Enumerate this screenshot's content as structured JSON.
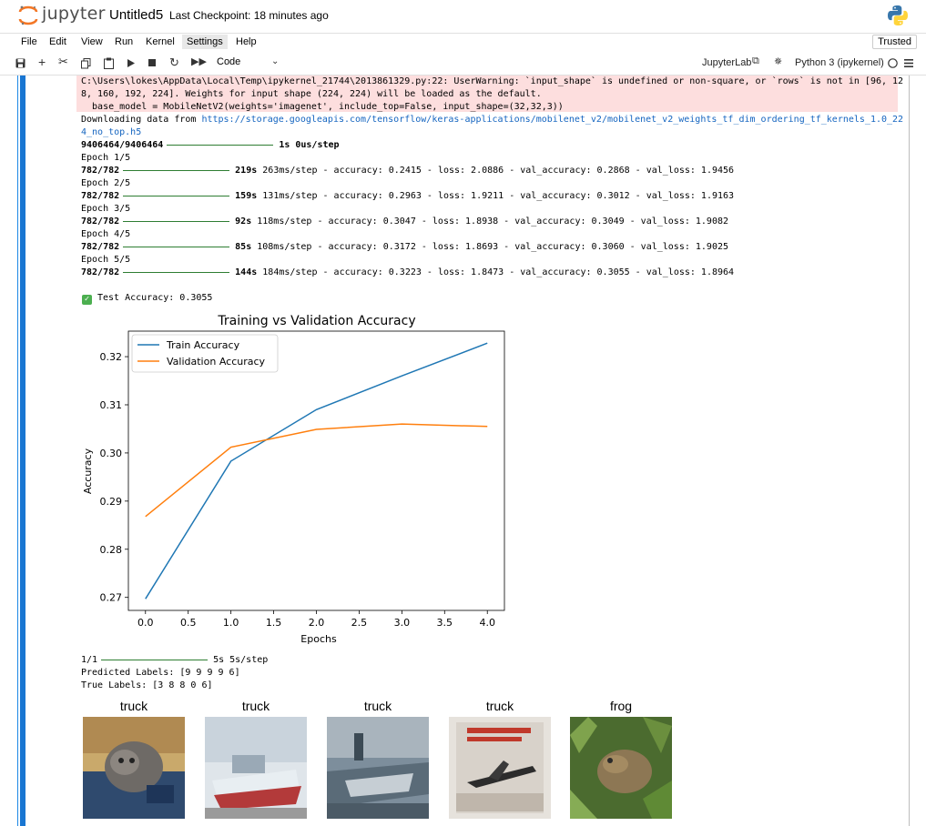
{
  "header": {
    "logo_text": "jupyter",
    "notebook_title": "Untitled5",
    "checkpoint": "Last Checkpoint: 18 minutes ago"
  },
  "menu": {
    "items": [
      "File",
      "Edit",
      "View",
      "Run",
      "Kernel",
      "Settings",
      "Help"
    ],
    "trusted": "Trusted"
  },
  "toolbar": {
    "cell_type": "Code",
    "jupyterlab": "JupyterLab",
    "kernel": "Python 3 (ipykernel)"
  },
  "output": {
    "warning_lines": [
      "C:\\Users\\lokes\\AppData\\Local\\Temp\\ipykernel_21744\\2013861329.py:22: UserWarning: `input_shape` is undefined or non-square, or `rows` is not in [96, 12",
      "8, 160, 192, 224]. Weights for input shape (224, 224) will be loaded as the default.",
      "  base_model = MobileNetV2(weights='imagenet', include_top=False, input_shape=(32,32,3))"
    ],
    "download_prefix": "Downloading data from ",
    "download_url_1": "https://storage.googleapis.com/tensorflow/keras-applications/mobilenet_v2/mobilenet_v2_weights_tf_dim_ordering_tf_kernels_1.0_22",
    "download_url_2": "4_no_top.h5",
    "download_progress": "9406464/9406464",
    "download_time": "1s 0us/step",
    "epochs": [
      {
        "label": "Epoch 1/5",
        "steps": "782/782",
        "time": "219s",
        "rest": "263ms/step - accuracy: 0.2415 - loss: 2.0886 - val_accuracy: 0.2868 - val_loss: 1.9456"
      },
      {
        "label": "Epoch 2/5",
        "steps": "782/782",
        "time": "159s",
        "rest": "131ms/step - accuracy: 0.2963 - loss: 1.9211 - val_accuracy: 0.3012 - val_loss: 1.9163"
      },
      {
        "label": "Epoch 3/5",
        "steps": "782/782",
        "time": "92s",
        "rest": "118ms/step - accuracy: 0.3047 - loss: 1.8938 - val_accuracy: 0.3049 - val_loss: 1.9082"
      },
      {
        "label": "Epoch 4/5",
        "steps": "782/782",
        "time": "85s",
        "rest": "108ms/step - accuracy: 0.3172 - loss: 1.8693 - val_accuracy: 0.3060 - val_loss: 1.9025"
      },
      {
        "label": "Epoch 5/5",
        "steps": "782/782",
        "time": "144s",
        "rest": "184ms/step - accuracy: 0.3223 - loss: 1.8473 - val_accuracy: 0.3055 - val_loss: 1.8964"
      }
    ],
    "test_accuracy": "Test Accuracy: 0.3055",
    "predict_steps": "1/1",
    "predict_time": "5s 5s/step",
    "predicted_labels": "Predicted Labels: [9 9 9 9 6]",
    "true_labels": "True Labels: [3 8 8 0 6]",
    "image_titles": [
      "truck",
      "truck",
      "truck",
      "truck",
      "frog"
    ]
  },
  "chart_data": {
    "type": "line",
    "title": "Training vs Validation Accuracy",
    "xlabel": "Epochs",
    "ylabel": "Accuracy",
    "x": [
      0,
      1,
      2,
      3,
      4
    ],
    "series": [
      {
        "name": "Train Accuracy",
        "values": [
          0.2697,
          0.2983,
          0.309,
          0.316,
          0.3228
        ],
        "color": "#1f77b4"
      },
      {
        "name": "Validation Accuracy",
        "values": [
          0.2868,
          0.3012,
          0.3049,
          0.306,
          0.3055
        ],
        "color": "#ff7f0e"
      }
    ],
    "xticks": [
      "0.0",
      "0.5",
      "1.0",
      "1.5",
      "2.0",
      "2.5",
      "3.0",
      "3.5",
      "4.0"
    ],
    "yticks": [
      "0.27",
      "0.28",
      "0.29",
      "0.30",
      "0.31",
      "0.32"
    ],
    "xlim": [
      -0.2,
      4.2
    ],
    "ylim": [
      0.2673,
      0.3253
    ],
    "legend": "top-left",
    "grid": false
  }
}
